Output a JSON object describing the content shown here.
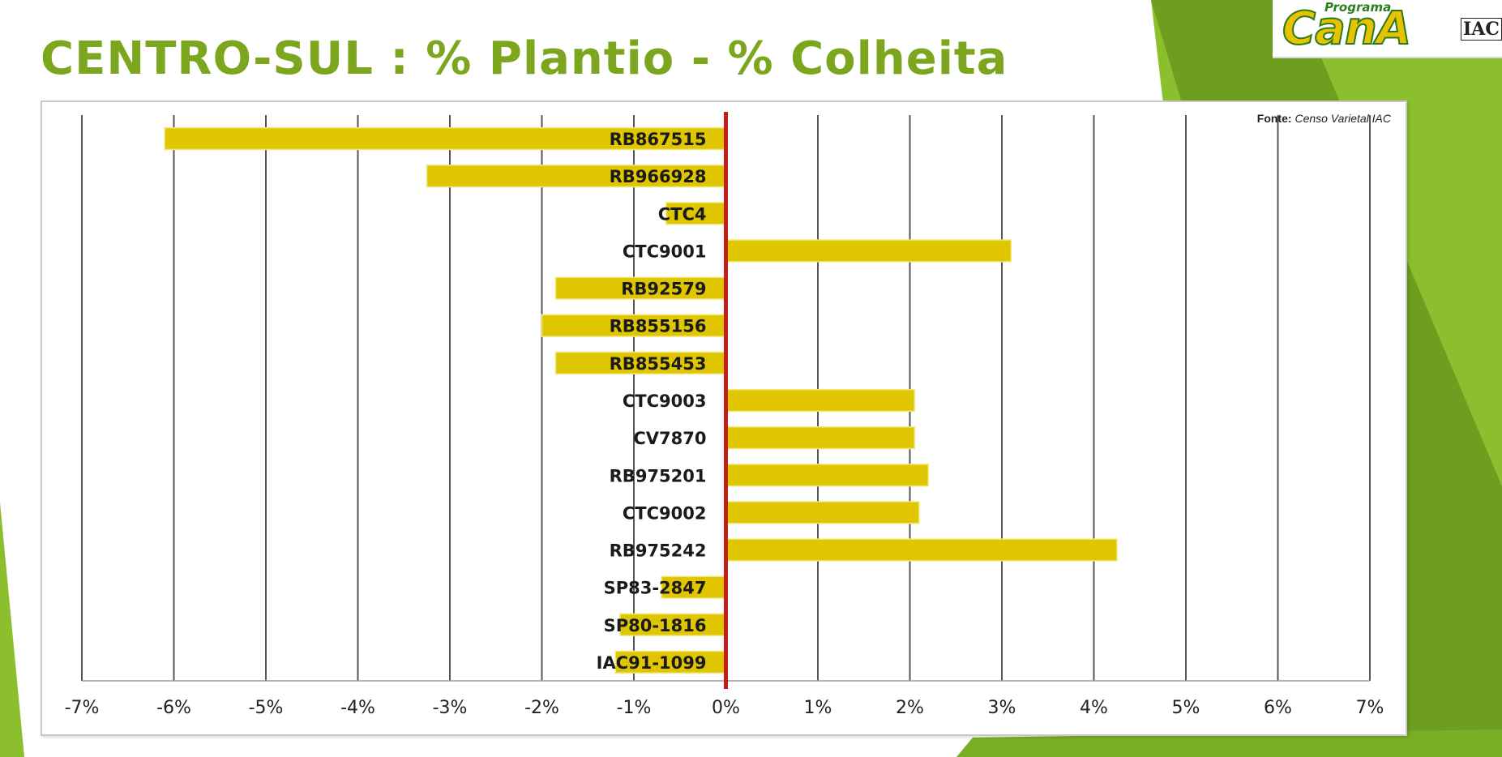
{
  "slide": {
    "title": "CENTRO-SUL : % Plantio - % Colheita",
    "source_label": "Fonte:",
    "source_value": "Censo Varietal IAC",
    "logo": {
      "top": "Programa",
      "main": "CanA",
      "sub": "IAC"
    }
  },
  "colors": {
    "bar": "#e0c600",
    "zero_line": "#c0201a",
    "gridline": "#555555",
    "title": "#7ba61e",
    "background_green": "#8bbf2e"
  },
  "chart_data": {
    "type": "bar",
    "orientation": "horizontal",
    "categories": [
      "RB867515",
      "RB966928",
      "CTC4",
      "CTC9001",
      "RB92579",
      "RB855156",
      "RB855453",
      "CTC9003",
      "CV7870",
      "RB975201",
      "CTC9002",
      "RB975242",
      "SP83-2847",
      "SP80-1816",
      "IAC91-1099"
    ],
    "values": [
      -6.1,
      -3.25,
      -0.65,
      3.1,
      -1.85,
      -2.0,
      -1.85,
      2.05,
      2.05,
      2.2,
      2.1,
      4.25,
      -0.7,
      -1.15,
      -1.2
    ],
    "xlim": [
      -7,
      7
    ],
    "xticks": [
      "-7%",
      "-6%",
      "-5%",
      "-4%",
      "-3%",
      "-2%",
      "-1%",
      "0%",
      "1%",
      "2%",
      "3%",
      "4%",
      "5%",
      "6%",
      "7%"
    ],
    "xlabel": "",
    "ylabel": "",
    "grid": "vertical",
    "legend": "none"
  }
}
